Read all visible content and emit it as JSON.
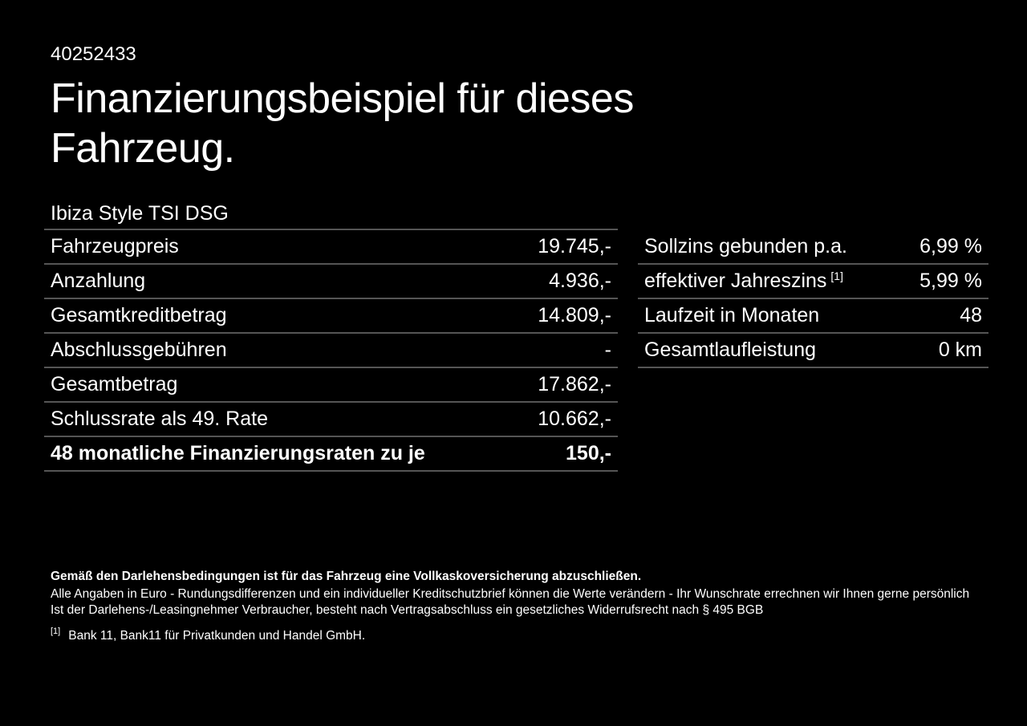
{
  "page": {
    "background_color": "#000000",
    "text_color": "#ffffff",
    "divider_color": "#555555"
  },
  "header": {
    "document_id": "40252433",
    "title_line1": "Finanzierungsbeispiel für dieses",
    "title_line2": "Fahrzeug."
  },
  "vehicle": {
    "model": "Ibiza Style TSI DSG"
  },
  "finance_table": {
    "rows": [
      {
        "label": "Fahrzeugpreis",
        "value": "19.745,-"
      },
      {
        "label": "Anzahlung",
        "value": "4.936,-"
      },
      {
        "label": "Gesamtkreditbetrag",
        "value": "14.809,-"
      },
      {
        "label": "Abschlussgebühren",
        "value": "-"
      },
      {
        "label": "Gesamtbetrag",
        "value": "17.862,-"
      },
      {
        "label": "Schlussrate als 49. Rate",
        "value": "10.662,-"
      },
      {
        "label": "48 monatliche Finanzierungsraten zu je",
        "value": "150,-",
        "bold": true
      }
    ]
  },
  "rates_table": {
    "rows": [
      {
        "label": "Sollzins gebunden p.a.",
        "value": "6,99 %"
      },
      {
        "label": "effektiver Jahreszins",
        "sup": "[1]",
        "value": "5,99 %"
      },
      {
        "label": "Laufzeit in Monaten",
        "value": "48"
      },
      {
        "label": "Gesamtlaufleistung",
        "value": "0 km"
      }
    ]
  },
  "footer": {
    "insurance_note": "Gemäß den Darlehensbedingungen ist für das Fahrzeug eine Vollkaskoversicherung abzuschließen.",
    "disclaimer_line1": "Alle Angaben in Euro - Rundungsdifferenzen und ein individueller Kreditschutzbrief können die Werte verändern - Ihr Wunschrate errechnen wir Ihnen gerne persönlich",
    "disclaimer_line2": "Ist der Darlehens-/Leasingnehmer Verbraucher, besteht nach Vertragsabschluss ein gesetzliches Widerrufsrecht nach § 495 BGB",
    "footnote_marker": "[1]",
    "footnote_text": "Bank 11, Bank11 für Privatkunden und Handel GmbH."
  }
}
